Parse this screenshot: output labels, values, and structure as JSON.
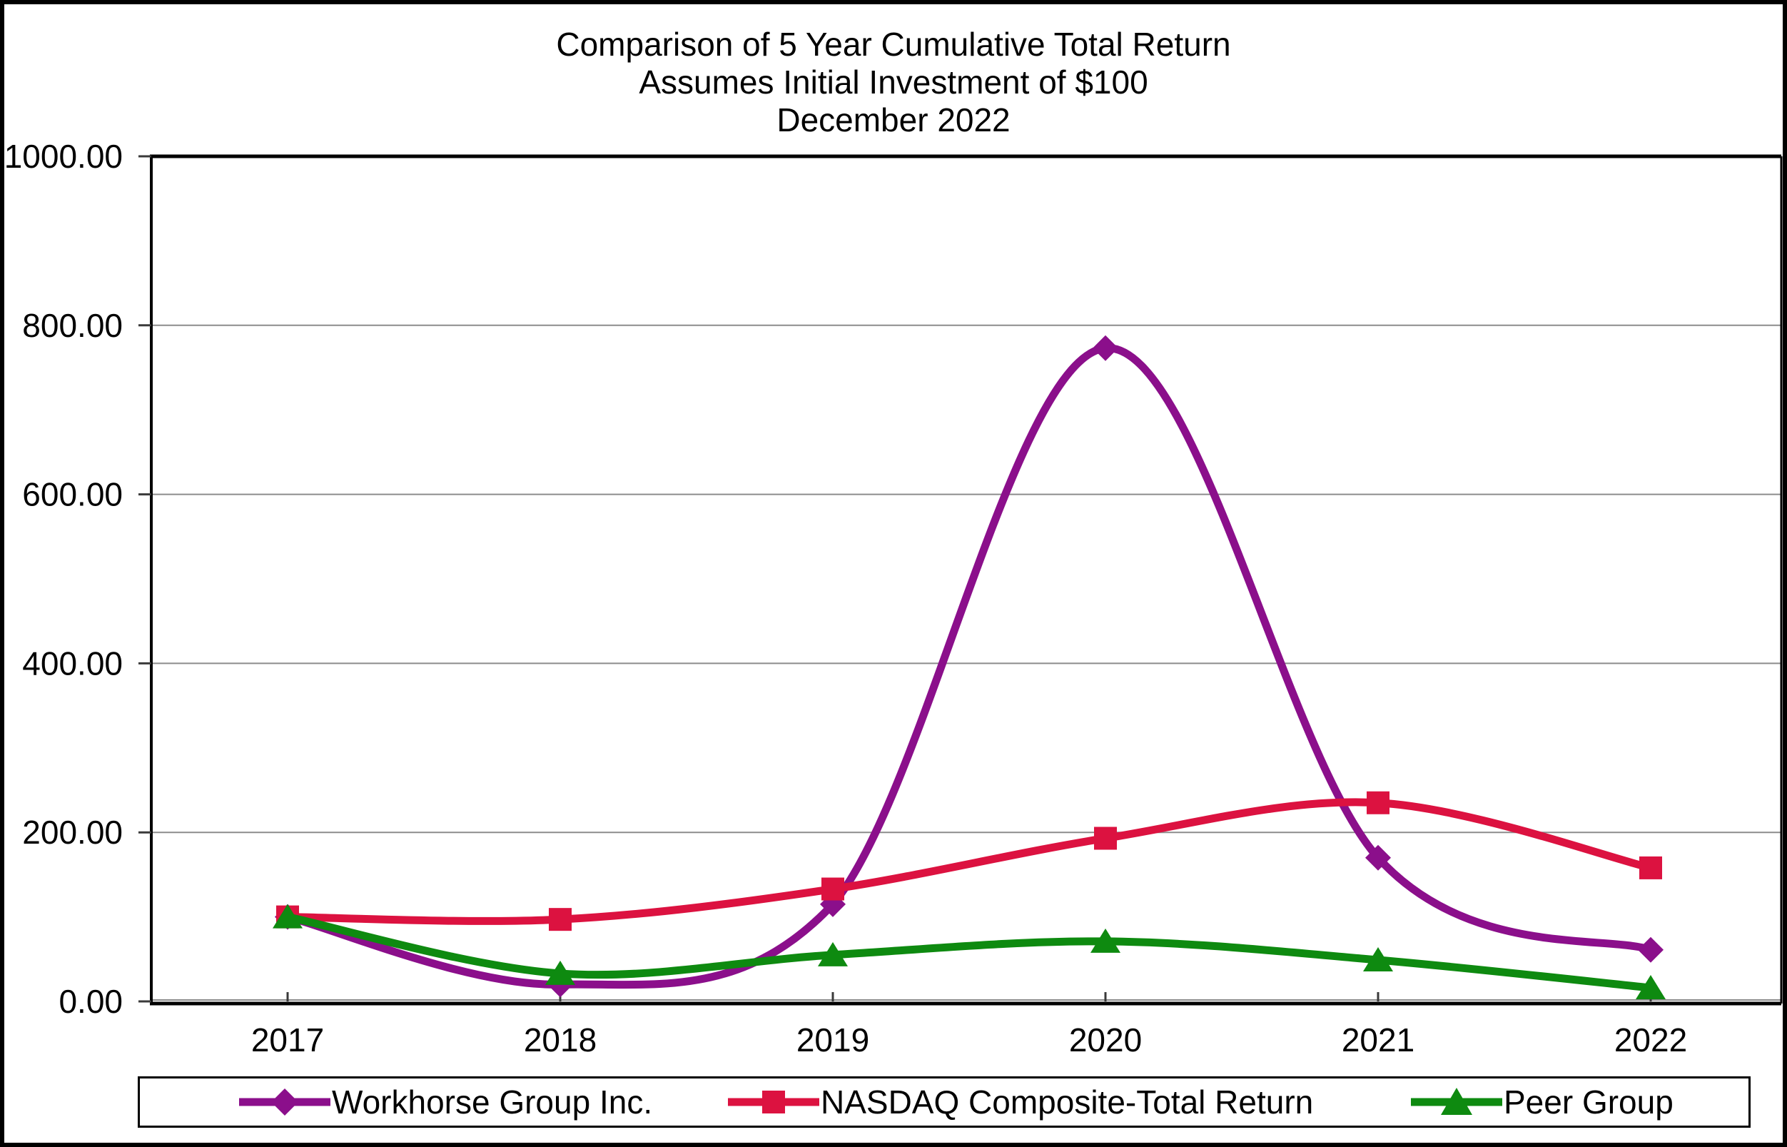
{
  "title": {
    "line1": "Comparison of 5 Year Cumulative Total Return",
    "line2": "Assumes Initial Investment of $100",
    "line3": "December 2022"
  },
  "chart_data": {
    "type": "line",
    "smoothed": true,
    "categories": [
      "2017",
      "2018",
      "2019",
      "2020",
      "2021",
      "2022"
    ],
    "series": [
      {
        "name": "Workhorse Group Inc.",
        "color": "#8B0F8B",
        "marker": "diamond",
        "values": [
          100,
          20,
          115,
          773,
          170,
          61
        ]
      },
      {
        "name": "NASDAQ Composite-Total Return",
        "color": "#DC1240",
        "marker": "square",
        "values": [
          100,
          97,
          133,
          193,
          235,
          158
        ]
      },
      {
        "name": "Peer Group",
        "color": "#0E8A10",
        "marker": "triangle",
        "values": [
          100,
          33,
          55,
          71,
          49,
          16
        ]
      }
    ],
    "xlabel": "",
    "ylabel": "",
    "ylim": [
      0,
      1000
    ],
    "yticks": [
      "0.00",
      "200.00",
      "400.00",
      "600.00",
      "800.00",
      "1000.00"
    ],
    "grid": true,
    "legend_position": "bottom",
    "axis_color": "#000000",
    "gridline_color": "#8C8C8C"
  }
}
